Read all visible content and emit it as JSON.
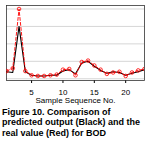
{
  "chart_data": {
    "type": "line",
    "caption": "Figure 10. Comparison of predicted output (Black) and the real value (Red) for BOD",
    "xlabel": "Sample Sequence No.",
    "x": [
      1,
      2,
      3,
      4,
      5,
      6,
      7,
      8,
      9,
      10,
      11,
      12,
      13,
      14,
      15,
      16,
      17,
      18,
      19,
      20,
      21,
      22,
      23
    ],
    "series": [
      {
        "color": "#000000",
        "line_style": "solid",
        "values": [
          0.2,
          0.18,
          1.5,
          0.2,
          0.1,
          0.08,
          0.08,
          0.1,
          0.1,
          0.22,
          0.26,
          0.14,
          0.45,
          0.5,
          0.36,
          0.24,
          0.16,
          0.2,
          0.18,
          0.1,
          0.16,
          0.2,
          0.26
        ]
      },
      {
        "color": "#ff0000",
        "line_style": "dashed",
        "marker": "circle",
        "values": [
          0.22,
          0.3,
          2.0,
          0.22,
          0.1,
          0.08,
          0.08,
          0.1,
          0.12,
          0.26,
          0.28,
          0.1,
          0.48,
          0.52,
          0.38,
          0.26,
          0.14,
          0.18,
          0.2,
          0.08,
          0.18,
          0.24,
          0.28
        ]
      }
    ],
    "xlim": [
      1,
      23
    ],
    "xticks": [
      5,
      10,
      15,
      20
    ],
    "ylim": [
      -0.05,
      2.1
    ],
    "yticks": [
      0,
      0.5,
      1,
      1.5,
      2
    ],
    "grid": true,
    "tick_labels": "x"
  }
}
